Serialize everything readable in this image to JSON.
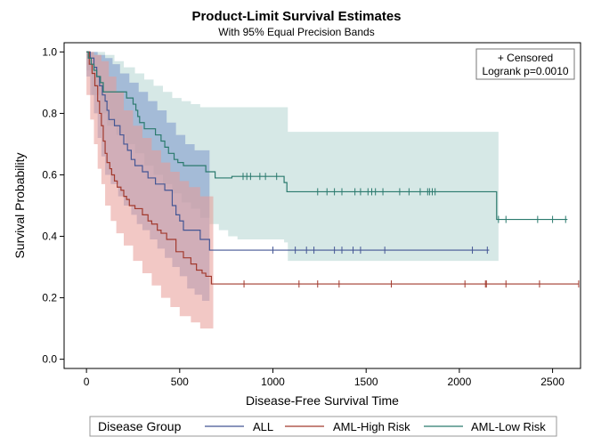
{
  "chart_data": {
    "type": "line",
    "step": true,
    "title": "Product-Limit Survival Estimates",
    "subtitle": "With 95% Equal Precision Bands",
    "xlabel": "Disease-Free Survival Time",
    "ylabel": "Survival Probability",
    "xlim": [
      -120,
      2650
    ],
    "ylim": [
      -0.03,
      1.03
    ],
    "xticks": [
      0,
      500,
      1000,
      1500,
      2000,
      2500
    ],
    "yticks": [
      0.0,
      0.2,
      0.4,
      0.6,
      0.8,
      1.0
    ],
    "xtick_labels": [
      "0",
      "500",
      "1000",
      "1500",
      "2000",
      "2500"
    ],
    "ytick_labels": [
      "0.0",
      "0.2",
      "0.4",
      "0.6",
      "0.8",
      "1.0"
    ],
    "inset": {
      "censored_label": "+ Censored",
      "logrank_label": "Logrank p=0.0010"
    },
    "legend": {
      "title": "Disease Group",
      "position": "bottom"
    },
    "series": [
      {
        "name": "ALL",
        "color": "#445694",
        "band_color": "#7c95ca",
        "steps": [
          [
            0,
            1.0
          ],
          [
            20,
            0.98
          ],
          [
            40,
            0.95
          ],
          [
            55,
            0.92
          ],
          [
            70,
            0.89
          ],
          [
            85,
            0.86
          ],
          [
            100,
            0.84
          ],
          [
            110,
            0.81
          ],
          [
            120,
            0.78
          ],
          [
            150,
            0.76
          ],
          [
            180,
            0.73
          ],
          [
            200,
            0.7
          ],
          [
            220,
            0.68
          ],
          [
            240,
            0.65
          ],
          [
            260,
            0.63
          ],
          [
            300,
            0.61
          ],
          [
            330,
            0.59
          ],
          [
            370,
            0.57
          ],
          [
            420,
            0.55
          ],
          [
            460,
            0.5
          ],
          [
            480,
            0.47
          ],
          [
            500,
            0.45
          ],
          [
            520,
            0.42
          ],
          [
            610,
            0.39
          ],
          [
            660,
            0.355
          ],
          [
            2160,
            0.355
          ]
        ],
        "band_lower": [
          [
            0,
            0.92
          ],
          [
            20,
            0.86
          ],
          [
            40,
            0.8
          ],
          [
            60,
            0.72
          ],
          [
            80,
            0.66
          ],
          [
            100,
            0.6
          ],
          [
            130,
            0.57
          ],
          [
            170,
            0.53
          ],
          [
            200,
            0.5
          ],
          [
            240,
            0.47
          ],
          [
            270,
            0.44
          ],
          [
            300,
            0.42
          ],
          [
            340,
            0.39
          ],
          [
            380,
            0.36
          ],
          [
            420,
            0.33
          ],
          [
            460,
            0.3
          ],
          [
            500,
            0.27
          ],
          [
            540,
            0.23
          ],
          [
            580,
            0.21
          ],
          [
            620,
            0.19
          ],
          [
            660,
            0.19
          ]
        ],
        "band_upper": [
          [
            0,
            1.0
          ],
          [
            60,
            0.99
          ],
          [
            100,
            0.98
          ],
          [
            140,
            0.96
          ],
          [
            180,
            0.93
          ],
          [
            230,
            0.9
          ],
          [
            280,
            0.87
          ],
          [
            330,
            0.84
          ],
          [
            380,
            0.81
          ],
          [
            430,
            0.77
          ],
          [
            480,
            0.73
          ],
          [
            530,
            0.7
          ],
          [
            580,
            0.68
          ],
          [
            660,
            0.67
          ]
        ],
        "censored": [
          1000,
          1120,
          1180,
          1220,
          1330,
          1370,
          1430,
          1470,
          1600,
          2070,
          2150
        ]
      },
      {
        "name": "AML-High Risk",
        "color": "#a23a2e",
        "band_color": "#e89a96",
        "steps": [
          [
            0,
            1.0
          ],
          [
            15,
            0.96
          ],
          [
            30,
            0.93
          ],
          [
            45,
            0.89
          ],
          [
            60,
            0.84
          ],
          [
            70,
            0.8
          ],
          [
            80,
            0.76
          ],
          [
            90,
            0.71
          ],
          [
            100,
            0.67
          ],
          [
            110,
            0.64
          ],
          [
            125,
            0.62
          ],
          [
            135,
            0.6
          ],
          [
            150,
            0.58
          ],
          [
            165,
            0.56
          ],
          [
            185,
            0.55
          ],
          [
            200,
            0.53
          ],
          [
            215,
            0.52
          ],
          [
            230,
            0.5
          ],
          [
            260,
            0.49
          ],
          [
            300,
            0.47
          ],
          [
            330,
            0.45
          ],
          [
            350,
            0.44
          ],
          [
            380,
            0.42
          ],
          [
            400,
            0.41
          ],
          [
            430,
            0.39
          ],
          [
            480,
            0.35
          ],
          [
            520,
            0.33
          ],
          [
            560,
            0.31
          ],
          [
            590,
            0.29
          ],
          [
            620,
            0.28
          ],
          [
            640,
            0.27
          ],
          [
            670,
            0.245
          ],
          [
            2640,
            0.245
          ]
        ],
        "band_lower": [
          [
            0,
            0.86
          ],
          [
            20,
            0.78
          ],
          [
            40,
            0.7
          ],
          [
            60,
            0.62
          ],
          [
            80,
            0.57
          ],
          [
            100,
            0.5
          ],
          [
            130,
            0.45
          ],
          [
            160,
            0.41
          ],
          [
            200,
            0.37
          ],
          [
            250,
            0.32
          ],
          [
            300,
            0.28
          ],
          [
            350,
            0.24
          ],
          [
            400,
            0.2
          ],
          [
            450,
            0.17
          ],
          [
            500,
            0.14
          ],
          [
            560,
            0.12
          ],
          [
            610,
            0.1
          ],
          [
            680,
            0.1
          ]
        ],
        "band_upper": [
          [
            0,
            1.0
          ],
          [
            40,
            0.99
          ],
          [
            80,
            0.97
          ],
          [
            120,
            0.92
          ],
          [
            160,
            0.87
          ],
          [
            200,
            0.81
          ],
          [
            250,
            0.76
          ],
          [
            300,
            0.72
          ],
          [
            350,
            0.68
          ],
          [
            400,
            0.64
          ],
          [
            450,
            0.61
          ],
          [
            500,
            0.58
          ],
          [
            550,
            0.56
          ],
          [
            610,
            0.53
          ],
          [
            680,
            0.47
          ]
        ],
        "censored": [
          845,
          1140,
          1240,
          1355,
          1635,
          2030,
          2140,
          2145,
          2250,
          2430,
          2640
        ]
      },
      {
        "name": "AML-Low Risk",
        "color": "#2b7a6e",
        "band_color": "#b4d6d1",
        "steps": [
          [
            0,
            1.0
          ],
          [
            10,
            0.98
          ],
          [
            25,
            0.96
          ],
          [
            40,
            0.94
          ],
          [
            55,
            0.92
          ],
          [
            75,
            0.9
          ],
          [
            90,
            0.87
          ],
          [
            215,
            0.85
          ],
          [
            250,
            0.83
          ],
          [
            265,
            0.81
          ],
          [
            275,
            0.79
          ],
          [
            285,
            0.77
          ],
          [
            310,
            0.75
          ],
          [
            370,
            0.73
          ],
          [
            400,
            0.71
          ],
          [
            420,
            0.69
          ],
          [
            440,
            0.67
          ],
          [
            470,
            0.65
          ],
          [
            490,
            0.64
          ],
          [
            520,
            0.63
          ],
          [
            640,
            0.61
          ],
          [
            690,
            0.59
          ],
          [
            780,
            0.595
          ],
          [
            1060,
            0.575
          ],
          [
            1075,
            0.545
          ],
          [
            2150,
            0.545
          ],
          [
            2200,
            0.455
          ],
          [
            2580,
            0.455
          ]
        ],
        "band_lower": [
          [
            0,
            0.94
          ],
          [
            30,
            0.86
          ],
          [
            70,
            0.8
          ],
          [
            110,
            0.76
          ],
          [
            160,
            0.73
          ],
          [
            210,
            0.7
          ],
          [
            260,
            0.67
          ],
          [
            310,
            0.63
          ],
          [
            360,
            0.6
          ],
          [
            410,
            0.57
          ],
          [
            460,
            0.54
          ],
          [
            510,
            0.51
          ],
          [
            560,
            0.49
          ],
          [
            610,
            0.46
          ],
          [
            660,
            0.44
          ],
          [
            710,
            0.42
          ],
          [
            760,
            0.4
          ],
          [
            810,
            0.39
          ],
          [
            1060,
            0.38
          ],
          [
            1080,
            0.32
          ],
          [
            2210,
            0.32
          ]
        ],
        "band_upper": [
          [
            0,
            1.0
          ],
          [
            100,
            0.99
          ],
          [
            150,
            0.97
          ],
          [
            200,
            0.95
          ],
          [
            260,
            0.93
          ],
          [
            310,
            0.91
          ],
          [
            360,
            0.89
          ],
          [
            410,
            0.87
          ],
          [
            460,
            0.85
          ],
          [
            510,
            0.84
          ],
          [
            560,
            0.83
          ],
          [
            610,
            0.82
          ],
          [
            700,
            0.82
          ],
          [
            1060,
            0.82
          ],
          [
            1080,
            0.74
          ],
          [
            2210,
            0.74
          ]
        ],
        "censored": [
          840,
          860,
          880,
          930,
          960,
          1020,
          1240,
          1290,
          1330,
          1370,
          1440,
          1470,
          1510,
          1530,
          1550,
          1590,
          1680,
          1730,
          1790,
          1830,
          1840,
          1855,
          1870,
          2210,
          2250,
          2420,
          2500,
          2570
        ]
      }
    ]
  }
}
